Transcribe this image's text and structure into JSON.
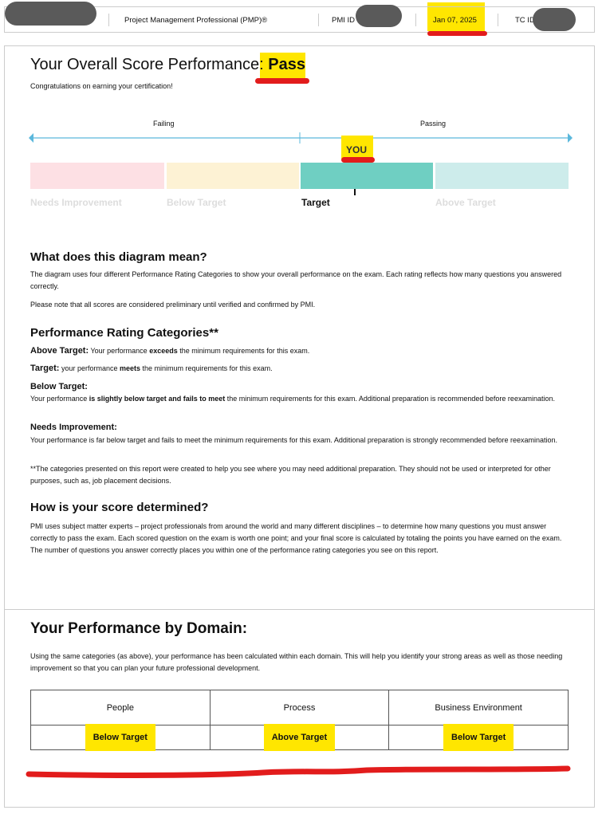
{
  "header": {
    "certification": "Project Management Professional (PMP)®",
    "pmi_id_label": "PMI ID",
    "date": "Jan 07, 2025",
    "tc_id_label": "TC ID"
  },
  "overall": {
    "title": "Your Overall Score Performance:",
    "result": "Pass",
    "subtitle": "Congratulations on earning your certification!"
  },
  "scale": {
    "failing": "Failing",
    "passing": "Passing",
    "you": "YOU",
    "categories": [
      "Needs Improvement",
      "Below Target",
      "Target",
      "Above Target"
    ],
    "current": "Target",
    "colors": [
      "#fde0e4",
      "#fdf2d4",
      "#6fcfc2",
      "#cdeceb"
    ]
  },
  "diagram": {
    "heading": "What does this diagram mean?",
    "p1": "The diagram uses four different Performance Rating Categories to show your overall performance on the exam. Each rating reflects how many questions you answered correctly.",
    "p2": "Please note that all scores are considered preliminary until verified and confirmed by PMI."
  },
  "categories": {
    "heading": "Performance Rating Categories**",
    "above_label": "Above Target:",
    "above_a": " Your performance ",
    "above_b": "exceeds",
    "above_c": " the minimum requirements for this exam.",
    "target_label": "Target:",
    "target_a": " your performance ",
    "target_b": "meets",
    "target_c": " the minimum requirements for this exam.",
    "below_label": "Below Target:",
    "below_a": "Your performance ",
    "below_b": "is slightly below target and fails to meet",
    "below_c": " the minimum requirements for this exam. Additional preparation is recommended before reexamination.",
    "needs_label": "Needs Improvement:",
    "needs_text": "Your performance is far below target and fails to meet the minimum requirements for this exam. Additional preparation is strongly recommended before reexamination.",
    "footnote": "**The categories presented on this report were created to help you see where you may need additional preparation. They should not be used or interpreted for other purposes, such as, job placement decisions."
  },
  "score": {
    "heading": "How is your score determined?",
    "text": "PMI uses subject matter experts – project professionals from around the world and many different disciplines – to determine how many questions you must answer correctly to pass the exam. Each scored question on the exam is worth one point; and your final score is calculated by totaling the points you have earned on the exam. The number of questions you answer correctly places you within one of the performance rating categories you see on this report."
  },
  "domain": {
    "heading": "Your Performance by Domain:",
    "text": "Using the same categories (as above), your performance has been calculated within each domain. This will help you identify your strong areas as well as those needing improvement so that you can plan your future professional development.",
    "domains": [
      {
        "name": "People",
        "rating": "Below Target"
      },
      {
        "name": "Process",
        "rating": "Above Target"
      },
      {
        "name": "Business Environment",
        "rating": "Below Target"
      }
    ]
  }
}
